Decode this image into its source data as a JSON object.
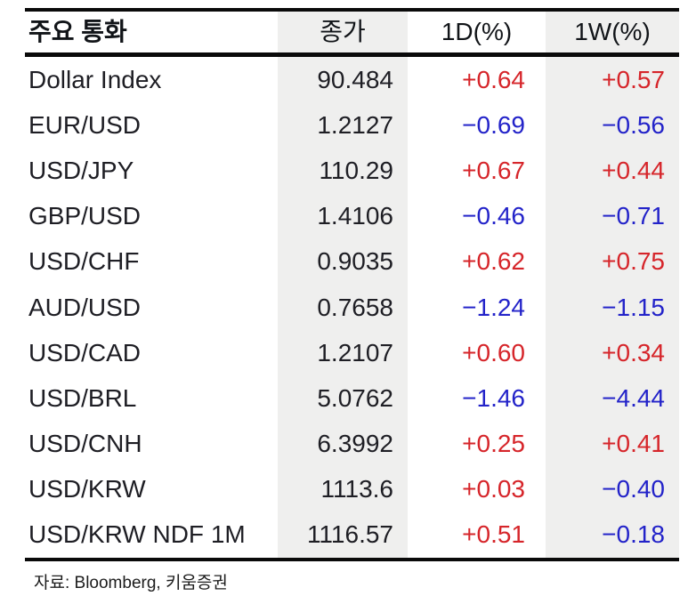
{
  "colors": {
    "positive": "#d6252a",
    "negative": "#2323c9",
    "text": "#1e1e24",
    "band": "#efefee",
    "rule": "#0a0a0a"
  },
  "table": {
    "headers": [
      "주요 통화",
      "종가",
      "1D(%)",
      "1W(%)"
    ],
    "rows": [
      {
        "name": "Dollar Index",
        "close": "90.484",
        "d1": "+0.64",
        "w1": "+0.57"
      },
      {
        "name": "EUR/USD",
        "close": "1.2127",
        "d1": "−0.69",
        "w1": "−0.56"
      },
      {
        "name": "USD/JPY",
        "close": "110.29",
        "d1": "+0.67",
        "w1": "+0.44"
      },
      {
        "name": "GBP/USD",
        "close": "1.4106",
        "d1": "−0.46",
        "w1": "−0.71"
      },
      {
        "name": "USD/CHF",
        "close": "0.9035",
        "d1": "+0.62",
        "w1": "+0.75"
      },
      {
        "name": "AUD/USD",
        "close": "0.7658",
        "d1": "−1.24",
        "w1": "−1.15"
      },
      {
        "name": "USD/CAD",
        "close": "1.2107",
        "d1": "+0.60",
        "w1": "+0.34"
      },
      {
        "name": "USD/BRL",
        "close": "5.0762",
        "d1": "−1.46",
        "w1": "−4.44"
      },
      {
        "name": "USD/CNH",
        "close": "6.3992",
        "d1": "+0.25",
        "w1": "+0.41"
      },
      {
        "name": "USD/KRW",
        "close": "1113.6",
        "d1": "+0.03",
        "w1": "−0.40"
      },
      {
        "name": "USD/KRW NDF 1M",
        "close": "1116.57",
        "d1": "+0.51",
        "w1": "−0.18"
      }
    ]
  },
  "footer": {
    "source": "자료: Bloomberg, 키움증권"
  },
  "chart_data": {
    "type": "table",
    "title": "주요 통화",
    "columns": [
      "주요 통화",
      "종가",
      "1D(%)",
      "1W(%)"
    ],
    "rows": [
      [
        "Dollar Index",
        90.484,
        0.64,
        0.57
      ],
      [
        "EUR/USD",
        1.2127,
        -0.69,
        -0.56
      ],
      [
        "USD/JPY",
        110.29,
        0.67,
        0.44
      ],
      [
        "GBP/USD",
        1.4106,
        -0.46,
        -0.71
      ],
      [
        "USD/CHF",
        0.9035,
        0.62,
        0.75
      ],
      [
        "AUD/USD",
        0.7658,
        -1.24,
        -1.15
      ],
      [
        "USD/CAD",
        1.2107,
        0.6,
        0.34
      ],
      [
        "USD/BRL",
        5.0762,
        -1.46,
        -4.44
      ],
      [
        "USD/CNH",
        6.3992,
        0.25,
        0.41
      ],
      [
        "USD/KRW",
        1113.6,
        0.03,
        -0.4
      ],
      [
        "USD/KRW NDF 1M",
        1116.57,
        0.51,
        -0.18
      ]
    ],
    "source": "자료: Bloomberg, 키움증권",
    "legend": "positive changes shown in red, negative changes shown in blue"
  }
}
